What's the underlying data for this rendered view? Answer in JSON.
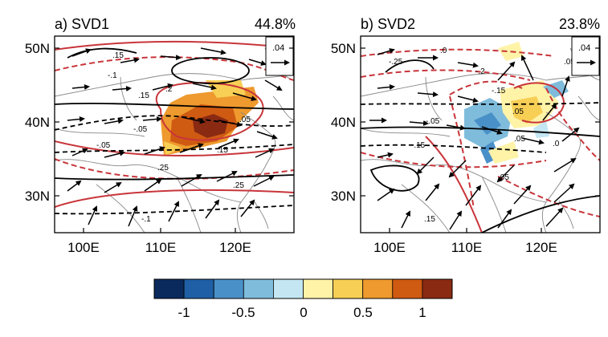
{
  "panels": [
    {
      "id": "svd1",
      "title": "a) SVD1",
      "percent": "44.8%",
      "ref_vector": ".04",
      "contour_labels": [
        ".15",
        "-.1",
        ".2",
        ".15",
        "-.05",
        ".05",
        ".15",
        "-.05",
        ".25",
        ".25",
        "-.1"
      ]
    },
    {
      "id": "svd2",
      "title": "b) SVD2",
      "percent": "23.8%",
      "ref_vector": ".04",
      "contour_labels": [
        "-.25",
        ".0",
        "-.2",
        "-.15",
        ".05",
        "-.05",
        ".05",
        ".05",
        "-.15",
        ".15",
        ".0",
        ".05"
      ]
    }
  ],
  "axes": {
    "lat_labels": [
      "50N",
      "40N",
      "30N"
    ],
    "lon_labels": [
      "100E",
      "110E",
      "120E"
    ]
  },
  "colorbar": {
    "labels": [
      "-1",
      "-0.5",
      "0",
      "0.5",
      "1"
    ],
    "colors": [
      "#0a2a5e",
      "#1f5fa5",
      "#4a90c8",
      "#7fbcdc",
      "#c3e6f2",
      "#fff3a8",
      "#f8cf55",
      "#ee9a2e",
      "#cf5a12",
      "#8a2a12"
    ]
  }
}
